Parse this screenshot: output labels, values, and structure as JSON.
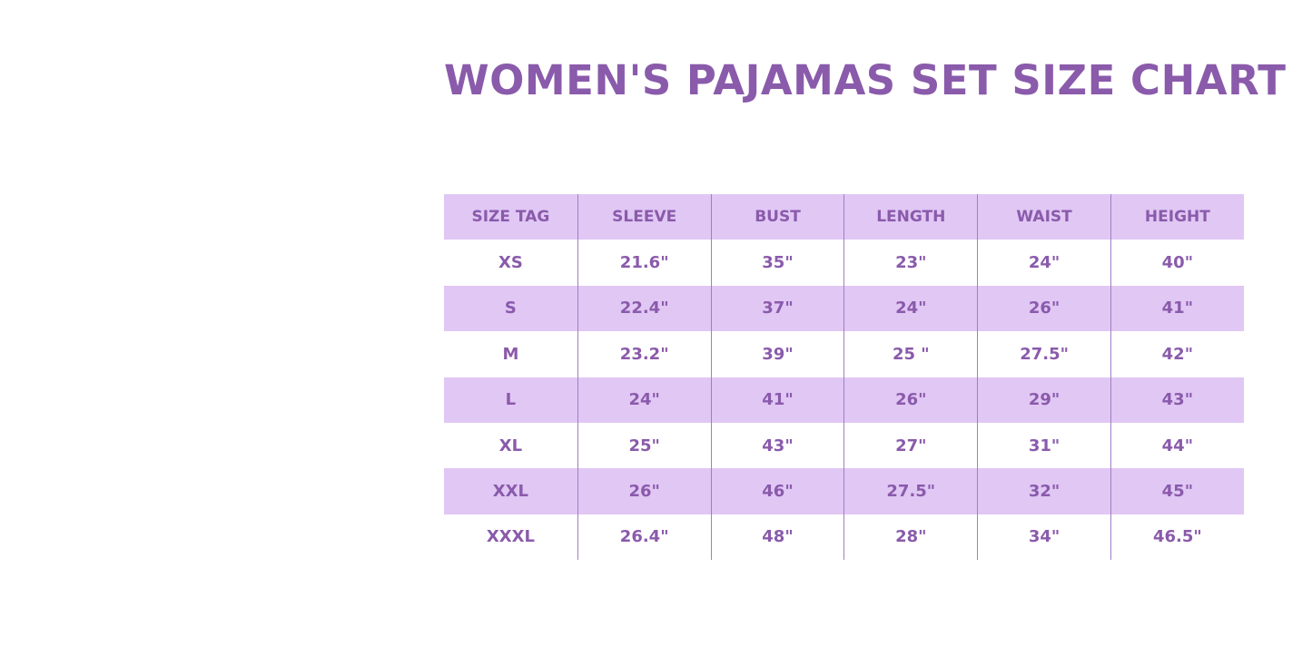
{
  "title": "WOMEN'S PAJAMAS SET SIZE CHART",
  "colors": {
    "text": "#8a5aab",
    "band": "#e0c7f4",
    "divider": "#a47cc4"
  },
  "table": {
    "headers": [
      "SIZE TAG",
      "SLEEVE",
      "BUST",
      "LENGTH",
      "WAIST",
      "HEIGHT"
    ],
    "rows": [
      [
        "XS",
        "21.6\"",
        "35\"",
        "23\"",
        "24\"",
        "40\""
      ],
      [
        "S",
        "22.4\"",
        "37\"",
        "24\"",
        "26\"",
        "41\""
      ],
      [
        "M",
        "23.2\"",
        "39\"",
        "25 \"",
        "27.5\"",
        "42\""
      ],
      [
        "L",
        "24\"",
        "41\"",
        "26\"",
        "29\"",
        "43\""
      ],
      [
        "XL",
        "25\"",
        "43\"",
        "27\"",
        "31\"",
        "44\""
      ],
      [
        "XXL",
        "26\"",
        "46\"",
        "27.5\"",
        "32\"",
        "45\""
      ],
      [
        "XXXL",
        "26.4\"",
        "48\"",
        "28\"",
        "34\"",
        "46.5\""
      ]
    ]
  }
}
